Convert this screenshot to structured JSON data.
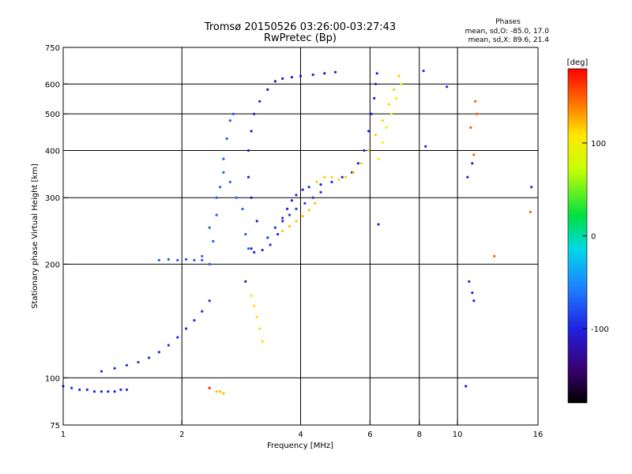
{
  "header": {
    "title_line1": "Tromsø 20150526 03:26:00-03:27:43",
    "title_line2": "RwPretec (Bp)",
    "phases_heading": "Phases",
    "phases_o": "mean, sd,O: -85.0, 17.0",
    "phases_x": "mean, sd,X:  89.6, 21.4"
  },
  "chart_data": {
    "type": "scatter",
    "xlabel": "Frequency [MHz]",
    "ylabel": "Stationary phase Virtual Height [km]",
    "xscale": "log",
    "yscale": "log",
    "xlim": [
      1,
      16
    ],
    "ylim": [
      75,
      750
    ],
    "xticks": [
      1,
      2,
      4,
      6,
      8,
      10,
      16
    ],
    "xtick_labels": [
      "1",
      "2",
      "4",
      "6",
      "8",
      "10",
      "16"
    ],
    "yticks": [
      75,
      100,
      200,
      300,
      400,
      500,
      600,
      750
    ],
    "ytick_labels": [
      "75",
      "100",
      "200",
      "300",
      "400",
      "500",
      "600",
      "750"
    ],
    "grid": true,
    "colorbar": {
      "label": "[deg]",
      "range": [
        -180,
        180
      ],
      "ticks": [
        100,
        0,
        -100
      ],
      "tick_labels": [
        "100",
        "0",
        "-100"
      ]
    },
    "traces": [
      {
        "points": [
          [
            1.0,
            95
          ],
          [
            1.05,
            94
          ],
          [
            1.1,
            93
          ],
          [
            1.15,
            93
          ],
          [
            1.2,
            92
          ],
          [
            1.25,
            92
          ],
          [
            1.3,
            92
          ],
          [
            1.35,
            92
          ],
          [
            1.4,
            93
          ],
          [
            1.45,
            93
          ]
        ],
        "phase": -100
      },
      {
        "points": [
          [
            1.25,
            104
          ],
          [
            1.35,
            106
          ],
          [
            1.45,
            108
          ],
          [
            1.55,
            110
          ],
          [
            1.65,
            113
          ],
          [
            1.75,
            117
          ],
          [
            1.85,
            122
          ],
          [
            1.95,
            128
          ],
          [
            2.05,
            135
          ],
          [
            2.15,
            142
          ],
          [
            2.25,
            150
          ],
          [
            2.35,
            160
          ]
        ],
        "phase": -95
      },
      {
        "points": [
          [
            1.75,
            205
          ],
          [
            1.85,
            206
          ],
          [
            1.95,
            205
          ],
          [
            2.05,
            206
          ],
          [
            2.15,
            205
          ],
          [
            2.25,
            205
          ]
        ],
        "phase": -80
      },
      {
        "points": [
          [
            2.35,
            200
          ],
          [
            2.4,
            230
          ],
          [
            2.45,
            270
          ],
          [
            2.5,
            320
          ],
          [
            2.55,
            380
          ],
          [
            2.6,
            430
          ],
          [
            2.65,
            480
          ],
          [
            2.7,
            500
          ]
        ],
        "phase": -75
      },
      {
        "points": [
          [
            2.25,
            210
          ],
          [
            2.35,
            250
          ],
          [
            2.45,
            300
          ],
          [
            2.55,
            350
          ],
          [
            2.65,
            330
          ],
          [
            2.75,
            300
          ],
          [
            2.85,
            280
          ],
          [
            2.9,
            240
          ],
          [
            2.95,
            220
          ]
        ],
        "phase": -70
      },
      {
        "points": [
          [
            2.9,
            180
          ],
          [
            3.0,
            220
          ],
          [
            3.1,
            260
          ],
          [
            3.0,
            300
          ],
          [
            2.95,
            340
          ],
          [
            2.95,
            400
          ],
          [
            3.0,
            450
          ],
          [
            3.05,
            500
          ],
          [
            3.15,
            540
          ],
          [
            3.3,
            580
          ],
          [
            3.45,
            610
          ],
          [
            3.6,
            620
          ],
          [
            3.8,
            625
          ],
          [
            4.0,
            630
          ],
          [
            4.3,
            635
          ],
          [
            4.6,
            640
          ],
          [
            4.9,
            645
          ]
        ],
        "phase": -110
      },
      {
        "points": [
          [
            3.05,
            215
          ],
          [
            3.2,
            218
          ],
          [
            3.35,
            225
          ],
          [
            3.5,
            240
          ],
          [
            3.6,
            260
          ],
          [
            3.7,
            280
          ],
          [
            3.8,
            295
          ],
          [
            3.9,
            305
          ],
          [
            4.05,
            315
          ],
          [
            4.2,
            320
          ],
          [
            4.5,
            325
          ],
          [
            4.8,
            330
          ],
          [
            5.1,
            340
          ],
          [
            5.4,
            350
          ],
          [
            5.6,
            370
          ],
          [
            5.8,
            400
          ],
          [
            5.95,
            450
          ],
          [
            6.05,
            500
          ],
          [
            6.15,
            550
          ],
          [
            6.2,
            600
          ],
          [
            6.25,
            640
          ]
        ],
        "phase": -100
      },
      {
        "points": [
          [
            3.3,
            235
          ],
          [
            3.45,
            250
          ],
          [
            3.6,
            265
          ],
          [
            3.75,
            270
          ],
          [
            3.9,
            280
          ],
          [
            4.1,
            290
          ],
          [
            4.3,
            300
          ],
          [
            4.5,
            310
          ]
        ],
        "phase": -90
      },
      {
        "points": [
          [
            3.6,
            245
          ],
          [
            3.75,
            252
          ],
          [
            3.9,
            260
          ],
          [
            4.05,
            268
          ],
          [
            4.2,
            278
          ],
          [
            4.35,
            290
          ]
        ],
        "phase": 120
      },
      {
        "points": [
          [
            4.4,
            330
          ],
          [
            4.6,
            340
          ],
          [
            4.8,
            340
          ],
          [
            5.0,
            335
          ],
          [
            5.2,
            340
          ],
          [
            5.45,
            350
          ],
          [
            5.7,
            370
          ],
          [
            5.95,
            400
          ],
          [
            6.2,
            440
          ],
          [
            6.45,
            480
          ],
          [
            6.7,
            530
          ],
          [
            6.9,
            580
          ],
          [
            7.1,
            630
          ]
        ],
        "phase": 115
      },
      {
        "points": [
          [
            6.3,
            380
          ],
          [
            6.45,
            420
          ],
          [
            6.6,
            460
          ],
          [
            6.8,
            500
          ],
          [
            7.0,
            550
          ],
          [
            7.2,
            600
          ]
        ],
        "phase": 90
      },
      {
        "points": [
          [
            3.0,
            165
          ],
          [
            3.05,
            155
          ],
          [
            3.1,
            145
          ],
          [
            3.15,
            135
          ],
          [
            3.2,
            125
          ]
        ],
        "phase": 110
      },
      {
        "points": [
          [
            2.45,
            92
          ],
          [
            2.5,
            92
          ],
          [
            2.55,
            91
          ]
        ],
        "phase": 120
      },
      {
        "points": [
          [
            2.35,
            94
          ]
        ],
        "phase": 170
      },
      {
        "points": [
          [
            8.2,
            650
          ],
          [
            9.4,
            590
          ],
          [
            8.3,
            410
          ],
          [
            10.6,
            340
          ],
          [
            10.9,
            370
          ],
          [
            10.7,
            180
          ],
          [
            10.9,
            168
          ],
          [
            11.0,
            160
          ],
          [
            10.5,
            95
          ],
          [
            15.4,
            320
          ],
          [
            6.3,
            255
          ]
        ],
        "phase": -100
      },
      {
        "points": [
          [
            10.8,
            460
          ],
          [
            11.1,
            540
          ],
          [
            11.2,
            500
          ],
          [
            11.0,
            390
          ],
          [
            12.4,
            210
          ],
          [
            15.3,
            275
          ]
        ],
        "phase": 150
      }
    ]
  }
}
